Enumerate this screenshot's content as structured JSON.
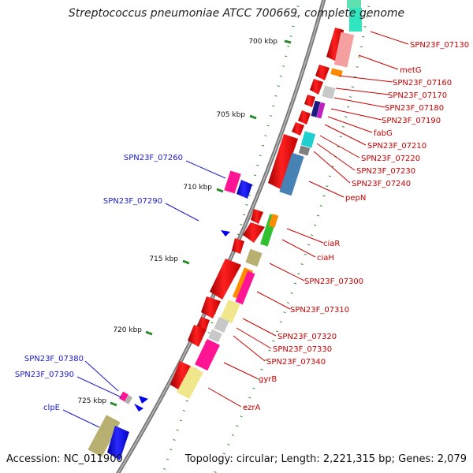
{
  "title": "Streptococcus pneumoniae ATCC 700669, complete genome",
  "footer": {
    "accession": "Accession: NC_011900",
    "summary": "Topology: circular; Length: 2,221,315 bp; Genes: 2,079"
  },
  "ticks": [
    "700 kbp",
    "705 kbp",
    "710 kbp",
    "715 kbp",
    "720 kbp",
    "725 kbp"
  ],
  "labels_right": [
    "SPN23F_07130",
    "metG",
    "SPN23F_07160",
    "SPN23F_07170",
    "SPN23F_07180",
    "SPN23F_07190",
    "fabG",
    "SPN23F_07210",
    "SPN23F_07220",
    "SPN23F_07230",
    "SPN23F_07240",
    "pepN",
    "ciaR",
    "ciaH",
    "SPN23F_07300",
    "SPN23F_07310",
    "SPN23F_07320",
    "SPN23F_07330",
    "SPN23F_07340",
    "gyrB",
    "ezrA"
  ],
  "labels_left": [
    "SPN23F_07260",
    "SPN23F_07290",
    "SPN23F_07380",
    "SPN23F_07390",
    "clpE"
  ],
  "colors": {
    "right_label": "#cc0000",
    "left_label": "#1a1acc",
    "backbone": "#808080",
    "forward_arrow": "#ee0000",
    "reverse_arrow": "#0000ee",
    "tick": "#2a8a2a"
  }
}
